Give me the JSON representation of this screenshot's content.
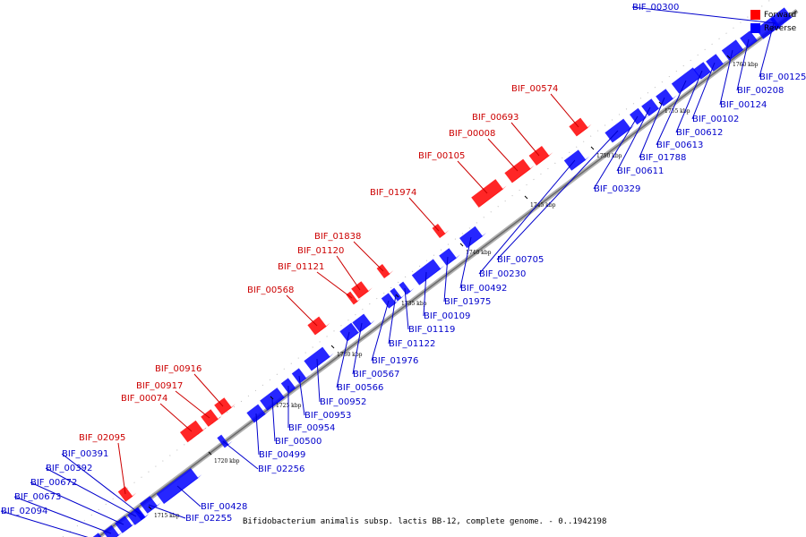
{
  "colors": {
    "forward": "#ff0000",
    "reverse": "#0000ff",
    "forward_label": "#cc0000",
    "reverse_label": "#0000cc",
    "backbone": "#888888"
  },
  "legend": {
    "forward": "Forward",
    "reverse": "Reverse"
  },
  "caption": "Bifidobacterium animalis subsp. lactis BB-12, complete genome. - 0..1942198",
  "scale": {
    "unit": "kbp",
    "ticks": [
      "1715 kbp",
      "1720 kbp",
      "1725 kbp",
      "1730 kbp",
      "1735 kbp",
      "1740 kbp",
      "1745 kbp",
      "1750 kbp",
      "1755 kbp",
      "1760 kbp"
    ]
  },
  "forward_genes": [
    "BIF_02095",
    "BIF_00074",
    "BIF_00917",
    "BIF_00916",
    "BIF_00568",
    "BIF_01121",
    "BIF_01120",
    "BIF_01838",
    "BIF_01974",
    "BIF_00105",
    "BIF_00008",
    "BIF_00693",
    "BIF_00574"
  ],
  "reverse_genes": [
    "BIF_02094",
    "BIF_00673",
    "BIF_00672",
    "BIF_00392",
    "BIF_00391",
    "BIF_02255",
    "BIF_00428",
    "BIF_02256",
    "BIF_00499",
    "BIF_00500",
    "BIF_00954",
    "BIF_00953",
    "BIF_00952",
    "BIF_00566",
    "BIF_00567",
    "BIF_01976",
    "BIF_01122",
    "BIF_01119",
    "BIF_00109",
    "BIF_01975",
    "BIF_00492",
    "BIF_00230",
    "BIF_00705",
    "BIF_00329",
    "BIF_00611",
    "BIF_01788",
    "BIF_00613",
    "BIF_00612",
    "BIF_00102",
    "BIF_00124",
    "BIF_00208",
    "BIF_00125",
    "BIF_00300"
  ]
}
